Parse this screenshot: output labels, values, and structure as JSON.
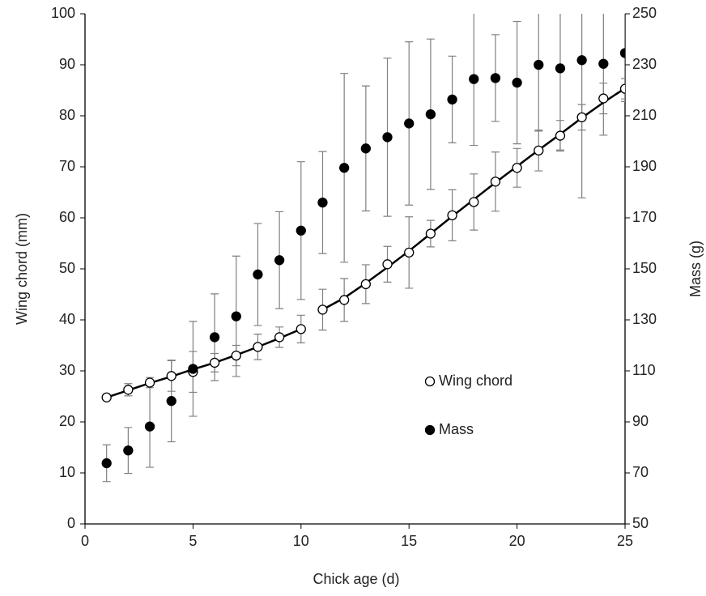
{
  "chart_data": {
    "type": "scatter",
    "xlabel": "Chick age (d)",
    "ylabel": "Wing chord (mm)",
    "y2label": "Mass (g)",
    "xlim": [
      0,
      25
    ],
    "xticks": [
      0,
      5,
      10,
      15,
      20,
      25
    ],
    "ylim": [
      0,
      100
    ],
    "yticks": [
      0,
      10,
      20,
      30,
      40,
      50,
      60,
      70,
      80,
      90,
      100
    ],
    "y2lim": [
      50,
      250
    ],
    "y2ticks": [
      50,
      70,
      90,
      110,
      130,
      150,
      170,
      190,
      210,
      230,
      250
    ],
    "legend_position": "center-right",
    "x": [
      1,
      2,
      3,
      4,
      5,
      6,
      7,
      8,
      9,
      10,
      11,
      12,
      13,
      14,
      15,
      16,
      17,
      18,
      19,
      20,
      21,
      22,
      23,
      24,
      25
    ],
    "series": [
      {
        "name": "Wing chord",
        "marker": "open",
        "color": "#000000",
        "error_color": "#808080",
        "values": [
          24.8,
          26.3,
          27.7,
          29.0,
          29.8,
          31.6,
          33.0,
          34.7,
          36.6,
          38.2,
          42.0,
          43.9,
          47.0,
          50.9,
          53.2,
          56.9,
          60.5,
          63.1,
          67.1,
          69.8,
          73.2,
          76.1,
          79.7,
          83.4,
          85.3
        ],
        "errors": [
          0.3,
          1.2,
          1.0,
          3.0,
          4.0,
          1.8,
          2.0,
          2.5,
          2.0,
          2.7,
          4.0,
          4.2,
          3.8,
          3.5,
          7.0,
          2.6,
          5.0,
          5.5,
          5.8,
          3.8,
          4.0,
          3.0,
          2.5,
          3.0,
          2.0
        ]
      },
      {
        "name": "Mass",
        "axis": "y2",
        "marker": "filled",
        "color": "#000000",
        "error_color": "#808080",
        "values": [
          73.8,
          78.8,
          88.2,
          98.2,
          110.8,
          123.2,
          131.4,
          147.8,
          153.4,
          165.0,
          176.0,
          189.6,
          197.2,
          201.6,
          207.0,
          210.6,
          216.4,
          224.4,
          224.8,
          223.0,
          230.0,
          228.6,
          231.8,
          230.4,
          234.6
        ],
        "errors": [
          7.2,
          9.0,
          16.0,
          16.0,
          18.6,
          17.0,
          23.6,
          20.0,
          19.0,
          27.0,
          20.0,
          37.0,
          24.5,
          31.0,
          32.0,
          29.5,
          17.0,
          26.0,
          17.0,
          24.0,
          26.0,
          32.0,
          54.0,
          28.0,
          19.0
        ]
      }
    ],
    "fit_lines": [
      {
        "x": [
          1,
          2,
          3,
          4,
          5,
          6,
          7,
          8,
          9,
          10
        ],
        "values": [
          24.8,
          26.2,
          27.6,
          28.9,
          30.3,
          31.6,
          33.1,
          34.7,
          36.4,
          38.2
        ]
      },
      {
        "x": [
          11,
          12,
          13,
          14,
          15,
          16,
          17,
          18,
          19,
          20,
          21,
          22,
          23,
          24,
          25
        ],
        "values": [
          42.0,
          44.3,
          47.2,
          50.3,
          53.5,
          56.9,
          60.3,
          63.6,
          66.9,
          70.1,
          73.3,
          76.4,
          79.6,
          82.6,
          85.4
        ]
      }
    ]
  }
}
